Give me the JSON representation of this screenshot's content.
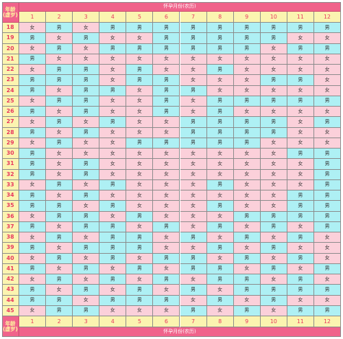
{
  "header": {
    "age_label_line1": "年龄",
    "age_label_line2": "(虚岁)",
    "month_title": "怀孕月份(农历)"
  },
  "months": [
    "1",
    "2",
    "3",
    "4",
    "5",
    "6",
    "7",
    "8",
    "9",
    "10",
    "11",
    "12"
  ],
  "colors": {
    "boy": "#aef0f4",
    "girl": "#fbd0da",
    "header": "#f0638b",
    "label_bg": "#fbf4b0",
    "label_text": "#e8385e"
  },
  "rows": [
    {
      "age": "18",
      "cells": [
        "女",
        "男",
        "女",
        "男",
        "男",
        "男",
        "男",
        "男",
        "男",
        "男",
        "男",
        "男"
      ]
    },
    {
      "age": "19",
      "cells": [
        "男",
        "女",
        "男",
        "女",
        "女",
        "男",
        "男",
        "男",
        "男",
        "男",
        "女",
        "女"
      ]
    },
    {
      "age": "20",
      "cells": [
        "女",
        "男",
        "女",
        "男",
        "男",
        "男",
        "男",
        "男",
        "男",
        "女",
        "男",
        "男"
      ]
    },
    {
      "age": "21",
      "cells": [
        "男",
        "女",
        "女",
        "女",
        "女",
        "女",
        "女",
        "女",
        "女",
        "女",
        "女",
        "女"
      ]
    },
    {
      "age": "22",
      "cells": [
        "女",
        "男",
        "男",
        "女",
        "男",
        "女",
        "女",
        "男",
        "女",
        "女",
        "女",
        "女"
      ]
    },
    {
      "age": "23",
      "cells": [
        "男",
        "男",
        "男",
        "女",
        "男",
        "男",
        "女",
        "女",
        "女",
        "男",
        "男",
        "女"
      ]
    },
    {
      "age": "24",
      "cells": [
        "男",
        "女",
        "男",
        "男",
        "女",
        "男",
        "男",
        "女",
        "女",
        "女",
        "女",
        "女"
      ]
    },
    {
      "age": "25",
      "cells": [
        "女",
        "男",
        "男",
        "女",
        "女",
        "男",
        "女",
        "男",
        "男",
        "男",
        "男",
        "男"
      ]
    },
    {
      "age": "26",
      "cells": [
        "男",
        "女",
        "男",
        "女",
        "女",
        "男",
        "女",
        "男",
        "女",
        "女",
        "女",
        "女"
      ]
    },
    {
      "age": "27",
      "cells": [
        "女",
        "男",
        "女",
        "男",
        "女",
        "女",
        "男",
        "男",
        "男",
        "男",
        "女",
        "男"
      ]
    },
    {
      "age": "28",
      "cells": [
        "男",
        "女",
        "男",
        "女",
        "女",
        "女",
        "男",
        "男",
        "男",
        "男",
        "女",
        "女"
      ]
    },
    {
      "age": "29",
      "cells": [
        "女",
        "男",
        "女",
        "女",
        "男",
        "男",
        "男",
        "男",
        "男",
        "女",
        "女",
        "女"
      ]
    },
    {
      "age": "30",
      "cells": [
        "男",
        "女",
        "女",
        "女",
        "女",
        "女",
        "女",
        "女",
        "女",
        "女",
        "男",
        "男"
      ]
    },
    {
      "age": "31",
      "cells": [
        "男",
        "女",
        "男",
        "女",
        "女",
        "女",
        "女",
        "女",
        "女",
        "女",
        "女",
        "男"
      ]
    },
    {
      "age": "32",
      "cells": [
        "男",
        "女",
        "男",
        "女",
        "女",
        "女",
        "女",
        "女",
        "女",
        "女",
        "女",
        "男"
      ]
    },
    {
      "age": "33",
      "cells": [
        "女",
        "男",
        "女",
        "男",
        "女",
        "女",
        "女",
        "男",
        "女",
        "女",
        "女",
        "男"
      ]
    },
    {
      "age": "34",
      "cells": [
        "男",
        "女",
        "男",
        "女",
        "女",
        "女",
        "女",
        "女",
        "女",
        "女",
        "男",
        "男"
      ]
    },
    {
      "age": "35",
      "cells": [
        "男",
        "男",
        "女",
        "男",
        "女",
        "女",
        "女",
        "男",
        "女",
        "女",
        "男",
        "男"
      ]
    },
    {
      "age": "36",
      "cells": [
        "女",
        "男",
        "男",
        "女",
        "男",
        "女",
        "女",
        "女",
        "男",
        "男",
        "男",
        "男"
      ]
    },
    {
      "age": "37",
      "cells": [
        "男",
        "女",
        "男",
        "男",
        "女",
        "男",
        "女",
        "男",
        "女",
        "男",
        "女",
        "男"
      ]
    },
    {
      "age": "38",
      "cells": [
        "女",
        "男",
        "女",
        "男",
        "男",
        "女",
        "男",
        "女",
        "男",
        "女",
        "男",
        "女"
      ]
    },
    {
      "age": "39",
      "cells": [
        "男",
        "女",
        "男",
        "男",
        "男",
        "女",
        "女",
        "男",
        "女",
        "男",
        "女",
        "女"
      ]
    },
    {
      "age": "40",
      "cells": [
        "女",
        "男",
        "女",
        "男",
        "女",
        "男",
        "男",
        "女",
        "男",
        "女",
        "男",
        "女"
      ]
    },
    {
      "age": "41",
      "cells": [
        "男",
        "女",
        "男",
        "女",
        "男",
        "女",
        "男",
        "男",
        "女",
        "男",
        "女",
        "男"
      ]
    },
    {
      "age": "42",
      "cells": [
        "女",
        "男",
        "女",
        "男",
        "女",
        "男",
        "女",
        "男",
        "男",
        "女",
        "男",
        "女"
      ]
    },
    {
      "age": "43",
      "cells": [
        "男",
        "女",
        "男",
        "女",
        "男",
        "女",
        "男",
        "女",
        "男",
        "男",
        "男",
        "男"
      ]
    },
    {
      "age": "44",
      "cells": [
        "男",
        "男",
        "女",
        "男",
        "男",
        "男",
        "女",
        "男",
        "女",
        "男",
        "女",
        "女"
      ]
    },
    {
      "age": "45",
      "cells": [
        "女",
        "男",
        "男",
        "女",
        "女",
        "女",
        "男",
        "女",
        "男",
        "女",
        "男",
        "男"
      ]
    }
  ]
}
